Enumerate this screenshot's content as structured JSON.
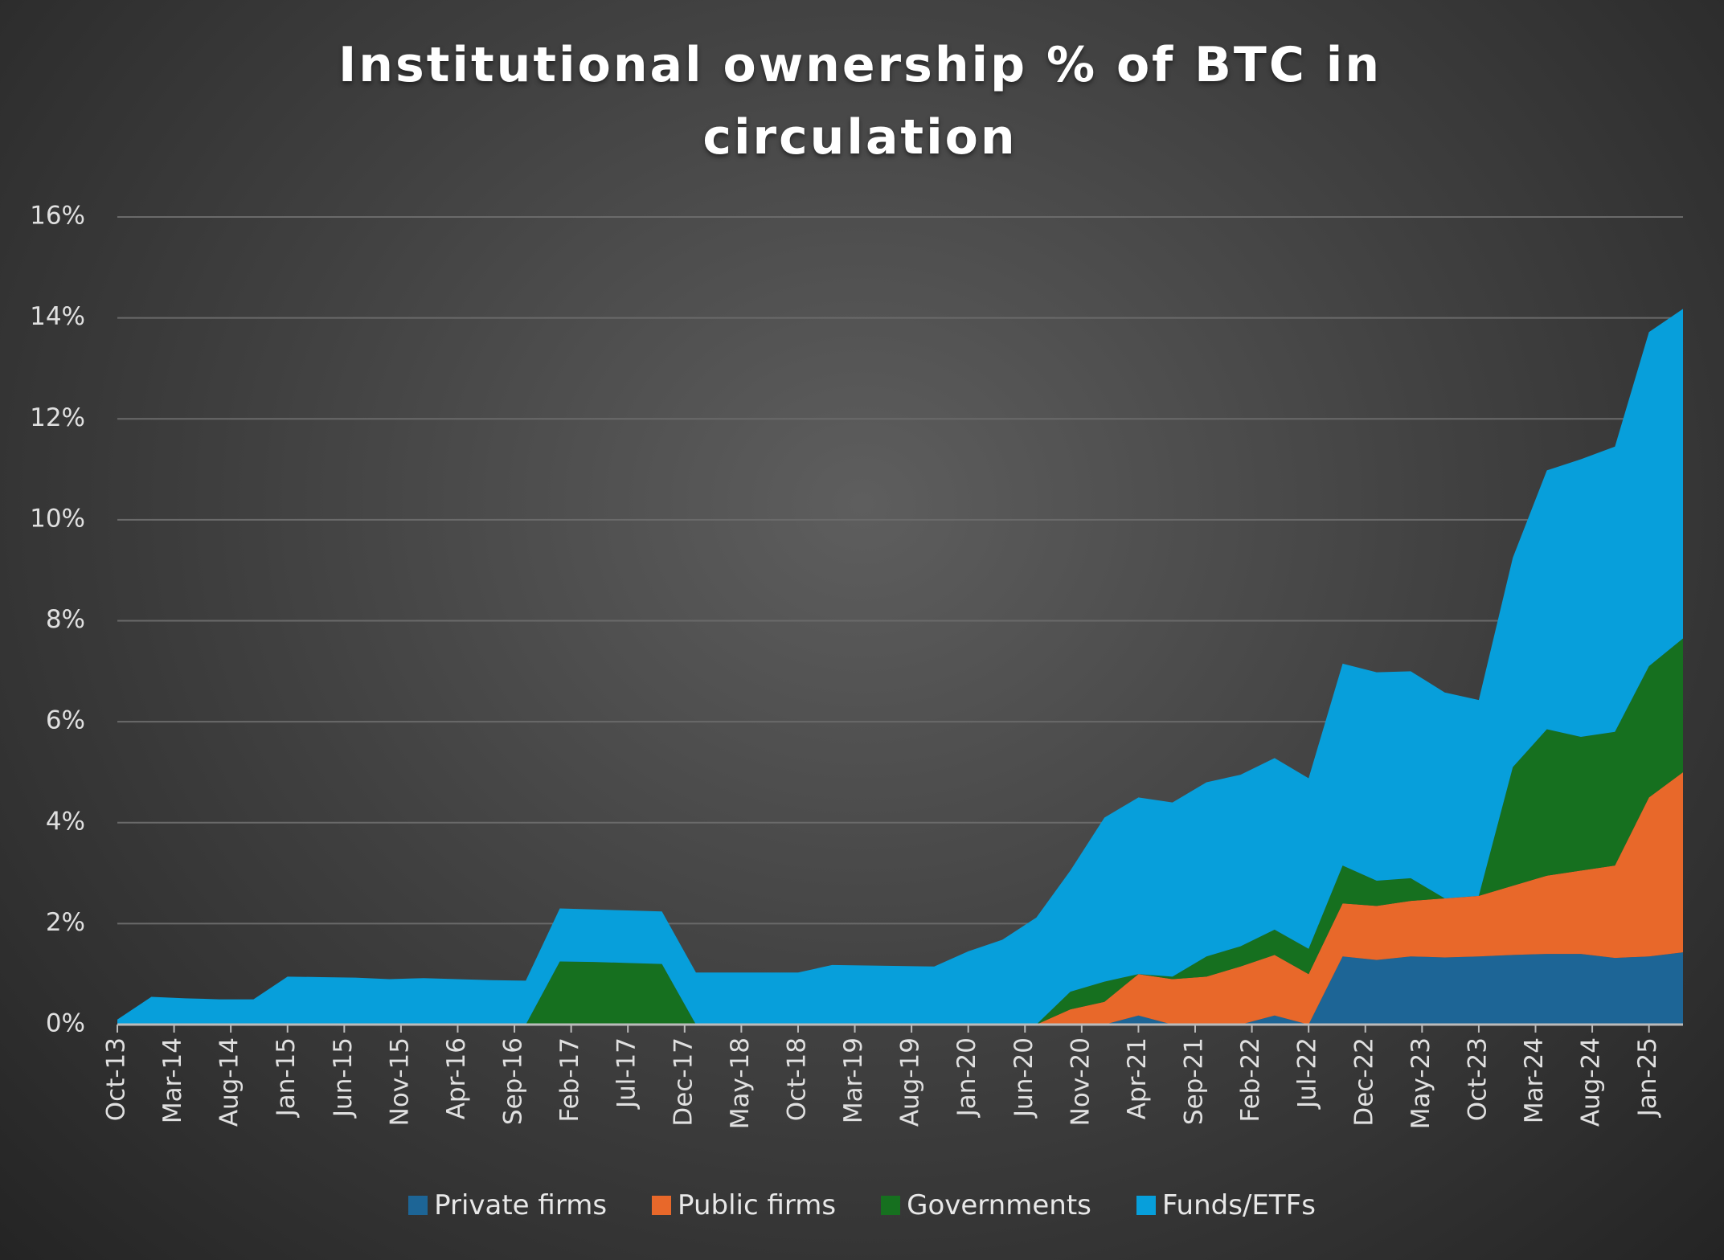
{
  "chart_data": {
    "type": "stacked_area",
    "title": "Institutional ownership % of BTC in circulation",
    "x": [
      "Oct-13",
      "Jan-14",
      "Apr-14",
      "Jul-14",
      "Oct-14",
      "Jan-15",
      "Apr-15",
      "Jul-15",
      "Oct-15",
      "Jan-16",
      "Apr-16",
      "Jul-16",
      "Oct-16",
      "Jan-17",
      "Apr-17",
      "Jul-17",
      "Oct-17",
      "Jan-18",
      "Apr-18",
      "Jul-18",
      "Oct-18",
      "Jan-19",
      "Apr-19",
      "Jul-19",
      "Oct-19",
      "Jan-20",
      "Apr-20",
      "Jul-20",
      "Oct-20",
      "Jan-21",
      "Apr-21",
      "Jul-21",
      "Oct-21",
      "Jan-22",
      "Apr-22",
      "Jul-22",
      "Oct-22",
      "Jan-23",
      "Apr-23",
      "Jul-23",
      "Oct-23",
      "Jan-24",
      "Apr-24",
      "Jul-24",
      "Oct-24",
      "Jan-25",
      "Apr-25"
    ],
    "xticks": [
      "Oct-13",
      "Mar-14",
      "Aug-14",
      "Jan-15",
      "Jun-15",
      "Nov-15",
      "Apr-16",
      "Sep-16",
      "Feb-17",
      "Jul-17",
      "Dec-17",
      "May-18",
      "Oct-18",
      "Mar-19",
      "Aug-19",
      "Jan-20",
      "Jun-20",
      "Nov-20",
      "Apr-21",
      "Sep-21",
      "Feb-22",
      "Jul-22",
      "Dec-22",
      "May-23",
      "Oct-23",
      "Mar-24",
      "Aug-24",
      "Jan-25"
    ],
    "series": [
      {
        "name": "Private firms",
        "color": "#1d6596",
        "values": [
          0,
          0,
          0,
          0,
          0,
          0,
          0,
          0,
          0,
          0,
          0,
          0,
          0,
          0,
          0,
          0,
          0,
          0,
          0,
          0,
          0,
          0,
          0,
          0,
          0,
          0,
          0,
          0,
          0,
          0,
          0.18,
          0,
          0,
          0,
          0.18,
          0,
          1.35,
          1.28,
          1.35,
          1.33,
          1.35,
          1.38,
          1.4,
          1.4,
          1.32,
          1.35,
          1.43
        ]
      },
      {
        "name": "Public firms",
        "color": "#e8682a",
        "values": [
          0,
          0,
          0,
          0,
          0,
          0,
          0,
          0,
          0,
          0,
          0,
          0,
          0,
          0,
          0,
          0,
          0,
          0,
          0,
          0,
          0,
          0,
          0,
          0,
          0,
          0,
          0,
          0,
          0.3,
          0.45,
          0.82,
          0.9,
          0.95,
          1.15,
          1.2,
          1.0,
          1.05,
          1.07,
          1.1,
          1.17,
          1.2,
          1.37,
          1.55,
          1.65,
          1.83,
          3.15,
          3.57
        ]
      },
      {
        "name": "Governments",
        "color": "#16701f",
        "values": [
          0,
          0,
          0,
          0,
          0,
          0,
          0,
          0,
          0,
          0,
          0,
          0,
          0,
          1.25,
          1.24,
          1.22,
          1.2,
          0,
          0,
          0,
          0,
          0,
          0,
          0,
          0,
          0,
          0,
          0,
          0.35,
          0.4,
          0,
          0.05,
          0.4,
          0.4,
          0.5,
          0.5,
          0.75,
          0.5,
          0.45,
          0,
          0,
          2.35,
          2.9,
          2.65,
          2.65,
          2.6,
          2.65
        ]
      },
      {
        "name": "Funds/ETFs",
        "color": "#079fdb",
        "values": [
          0.1,
          0.55,
          0.52,
          0.5,
          0.5,
          0.95,
          0.94,
          0.93,
          0.9,
          0.92,
          0.9,
          0.88,
          0.87,
          1.05,
          1.04,
          1.04,
          1.04,
          1.03,
          1.03,
          1.03,
          1.03,
          1.18,
          1.17,
          1.16,
          1.15,
          1.45,
          1.68,
          2.12,
          2.4,
          3.25,
          3.5,
          3.45,
          3.45,
          3.4,
          3.4,
          3.38,
          4.0,
          4.13,
          4.1,
          4.08,
          3.88,
          4.15,
          5.13,
          5.5,
          5.65,
          6.62,
          6.53
        ]
      }
    ],
    "ylim": [
      0,
      16
    ],
    "yticks": [
      {
        "value": 0,
        "label": "0%"
      },
      {
        "value": 2,
        "label": "2%"
      },
      {
        "value": 4,
        "label": "4%"
      },
      {
        "value": 6,
        "label": "6%"
      },
      {
        "value": 8,
        "label": "8%"
      },
      {
        "value": 10,
        "label": "10%"
      },
      {
        "value": 12,
        "label": "12%"
      },
      {
        "value": 14,
        "label": "14%"
      },
      {
        "value": 16,
        "label": "16%"
      }
    ],
    "grid": true,
    "legend": "bottom"
  }
}
